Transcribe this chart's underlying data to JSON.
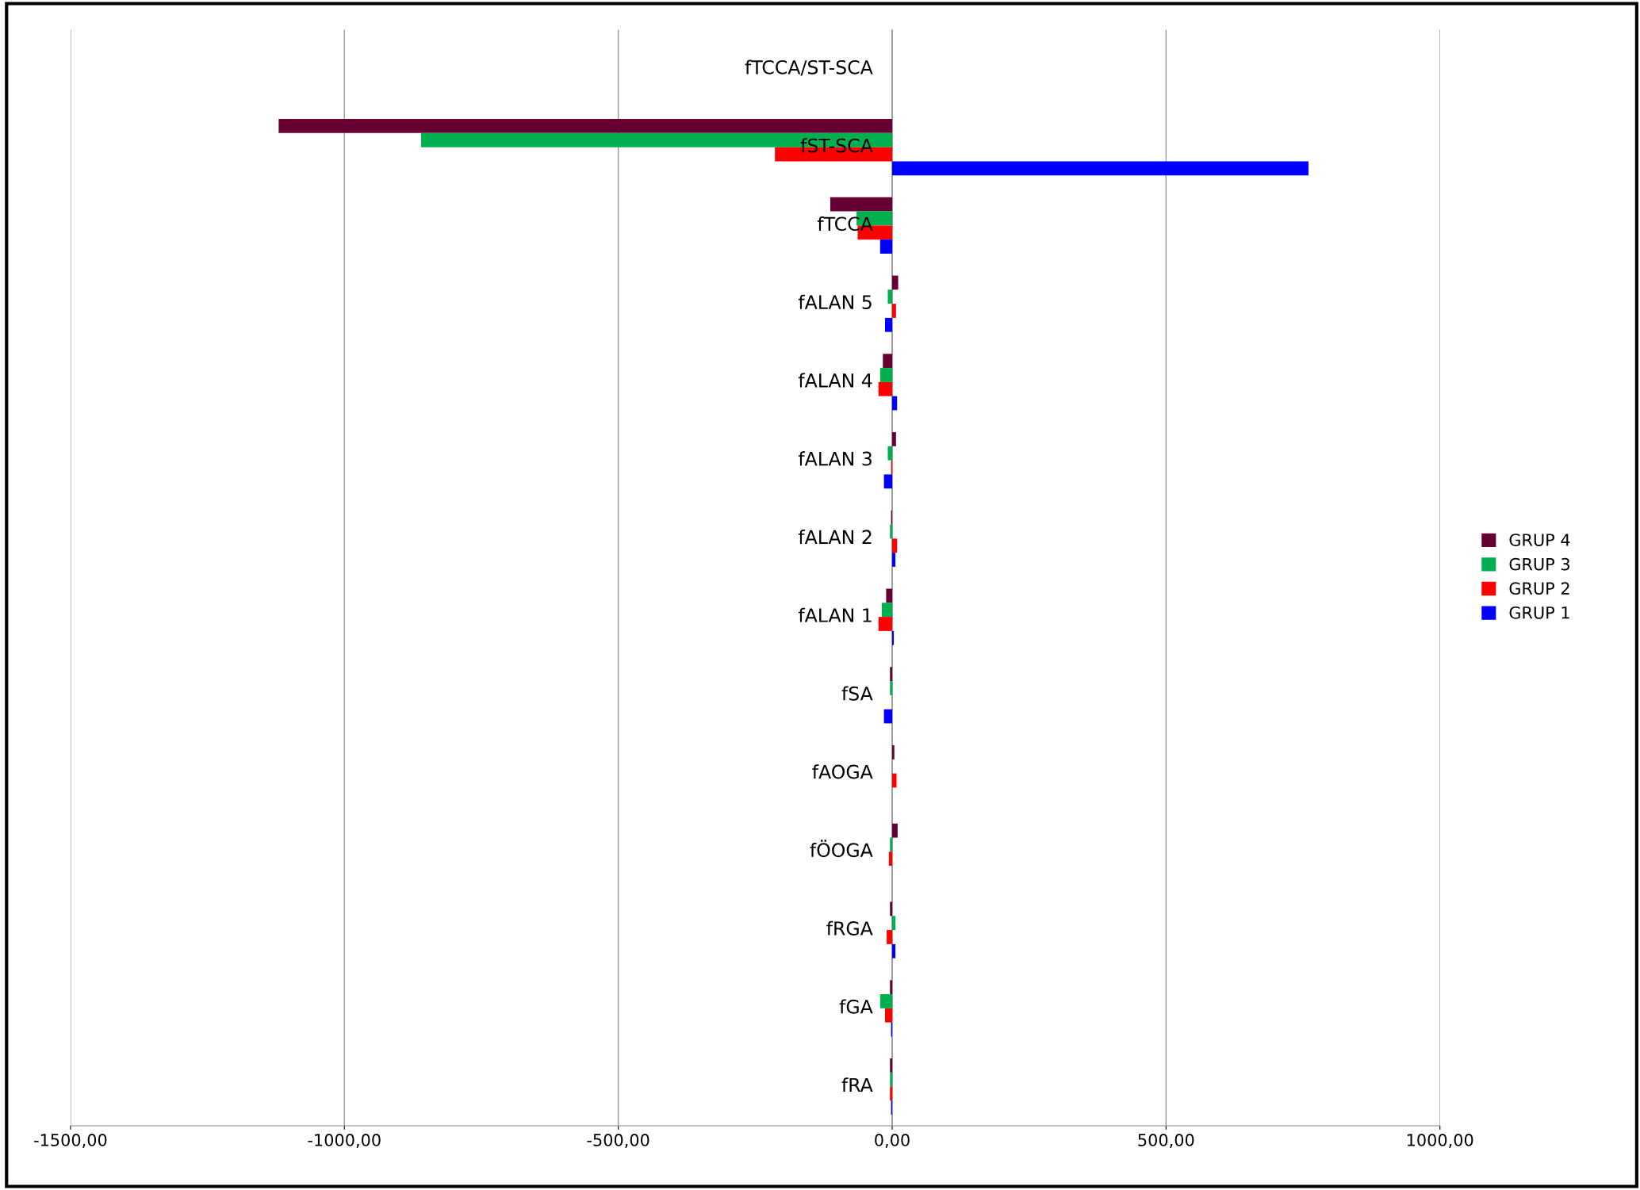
{
  "chart_data": {
    "type": "bar",
    "orientation": "horizontal",
    "categories": [
      "fTCCA/ST-SCA",
      "fST-SCA",
      "fTCCA",
      "fALAN 5",
      "fALAN 4",
      "fALAN 3",
      "fALAN 2",
      "fALAN 1",
      "fSA",
      "fAOGA",
      "fÖOGA",
      "fRGA",
      "fGA",
      "fRA"
    ],
    "series": [
      {
        "name": "GRUP 4",
        "color": "#660033",
        "values": [
          null,
          -1120,
          -113,
          11,
          -17,
          7,
          -2,
          -11,
          -4,
          4,
          10,
          -4,
          -4,
          -4
        ]
      },
      {
        "name": "GRUP 3",
        "color": "#00b050",
        "values": [
          null,
          -860,
          -65,
          -8,
          -22,
          -8,
          -4,
          -19,
          -4,
          0,
          -4,
          6,
          -22,
          -4
        ]
      },
      {
        "name": "GRUP 2",
        "color": "#ff0000",
        "values": [
          null,
          -214,
          -63,
          7,
          -25,
          -2,
          9,
          -25,
          0,
          8,
          -6,
          -10,
          -13,
          -4
        ]
      },
      {
        "name": "GRUP 1",
        "color": "#0000ff",
        "values": [
          null,
          760,
          -22,
          -13,
          9,
          -15,
          6,
          3,
          -15,
          0,
          0,
          6,
          -2,
          -2
        ]
      }
    ],
    "xlim": [
      -1500,
      1000
    ],
    "xticks": [
      {
        "value": -1500,
        "label": "-1500,00"
      },
      {
        "value": -1000,
        "label": "-1000,00"
      },
      {
        "value": -500,
        "label": "-500,00"
      },
      {
        "value": 0,
        "label": "0,00"
      },
      {
        "value": 500,
        "label": "500,00"
      },
      {
        "value": 1000,
        "label": "1000,00"
      }
    ],
    "grid": "x",
    "legend": "right"
  }
}
